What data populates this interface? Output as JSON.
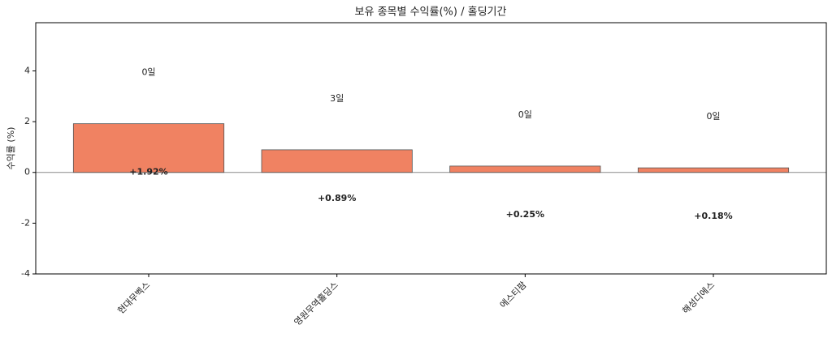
{
  "chart_data": {
    "type": "bar",
    "title": "보유 종목별 수익률(%) / 홀딩기간",
    "y_label": "수익률 (%)",
    "categories": [
      "현대무벡스",
      "영원무역홀딩스",
      "에스티팜",
      "해성디에스"
    ],
    "values": [
      1.92,
      0.89,
      0.25,
      0.18
    ],
    "value_labels": [
      "+1.92%",
      "+0.89%",
      "+0.25%",
      "+0.18%"
    ],
    "annotations": [
      "0일",
      "3일",
      "0일",
      "0일"
    ],
    "color": "#f08262",
    "edge_color": "#555555",
    "ylim": [
      -4,
      5.9
    ],
    "yticks": [
      -4,
      -2,
      0,
      2,
      4
    ]
  }
}
